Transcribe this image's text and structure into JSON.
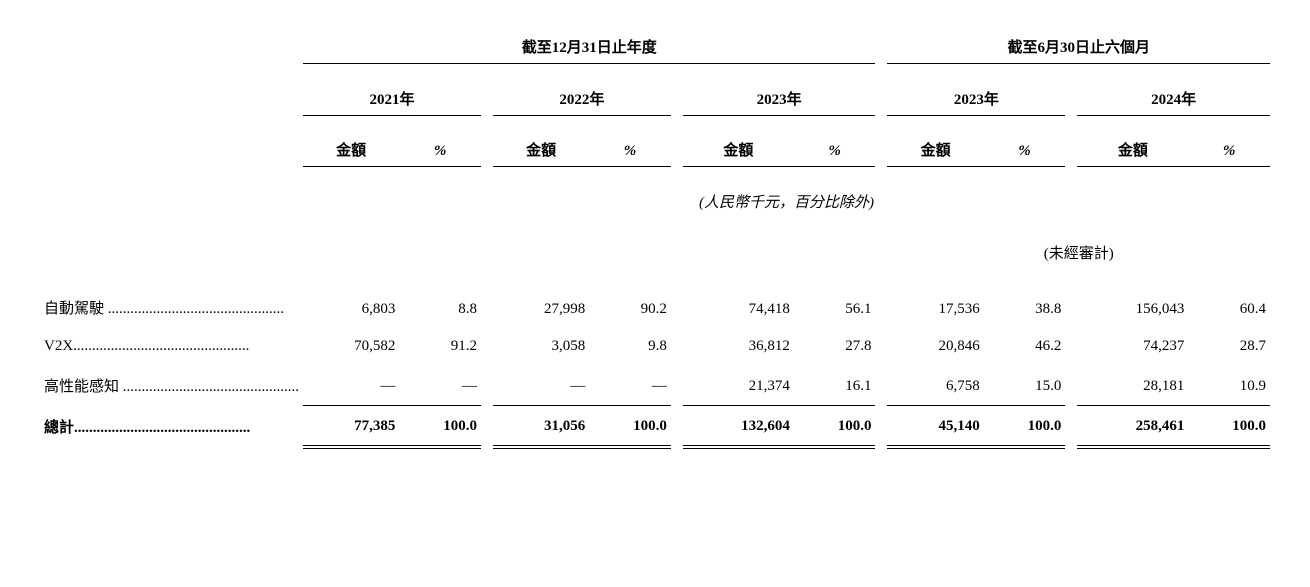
{
  "periods": {
    "annual_label": "截至12月31日止年度",
    "interim_label": "截至6月30日止六個月"
  },
  "years": [
    "2021年",
    "2022年",
    "2023年",
    "2023年",
    "2024年"
  ],
  "subheaders": {
    "amount": "金額",
    "pct": "%"
  },
  "unit_note": "(人民幣千元，百分比除外)",
  "unaudited_note": "(未經審計)",
  "rows": [
    {
      "label": "自動駕駛",
      "vals": [
        "6,803",
        "8.8",
        "27,998",
        "90.2",
        "74,418",
        "56.1",
        "17,536",
        "38.8",
        "156,043",
        "60.4"
      ]
    },
    {
      "label": "V2X",
      "vals": [
        "70,582",
        "91.2",
        "3,058",
        "9.8",
        "36,812",
        "27.8",
        "20,846",
        "46.2",
        "74,237",
        "28.7"
      ]
    },
    {
      "label": "高性能感知",
      "vals": [
        "—",
        "—",
        "—",
        "—",
        "21,374",
        "16.1",
        "6,758",
        "15.0",
        "28,181",
        "10.9"
      ]
    }
  ],
  "total": {
    "label": "總計",
    "vals": [
      "77,385",
      "100.0",
      "31,056",
      "100.0",
      "132,604",
      "100.0",
      "45,140",
      "100.0",
      "258,461",
      "100.0"
    ]
  },
  "dots": "..............................................."
}
